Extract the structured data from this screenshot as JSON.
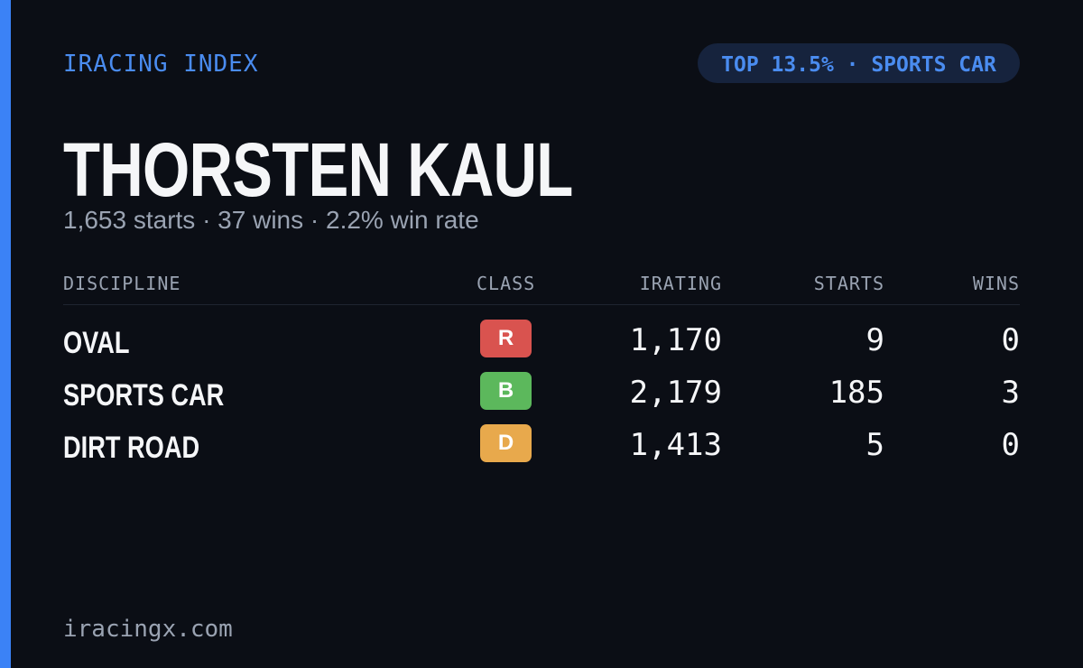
{
  "header": {
    "brand": "IRACING INDEX",
    "badge": "TOP 13.5% · SPORTS CAR"
  },
  "profile": {
    "name": "THORSTEN KAUL",
    "summary": "1,653 starts · 37 wins · 2.2% win rate"
  },
  "table": {
    "columns": [
      "DISCIPLINE",
      "CLASS",
      "IRATING",
      "STARTS",
      "WINS"
    ],
    "rows": [
      {
        "discipline": "OVAL",
        "class": "R",
        "class_color": "#d9534f",
        "irating": "1,170",
        "starts": "9",
        "wins": "0"
      },
      {
        "discipline": "SPORTS CAR",
        "class": "B",
        "class_color": "#5cb85c",
        "irating": "2,179",
        "starts": "185",
        "wins": "3"
      },
      {
        "discipline": "DIRT ROAD",
        "class": "D",
        "class_color": "#e8a94c",
        "irating": "1,413",
        "starts": "5",
        "wins": "0"
      }
    ]
  },
  "footer": {
    "site": "iracingx.com"
  }
}
